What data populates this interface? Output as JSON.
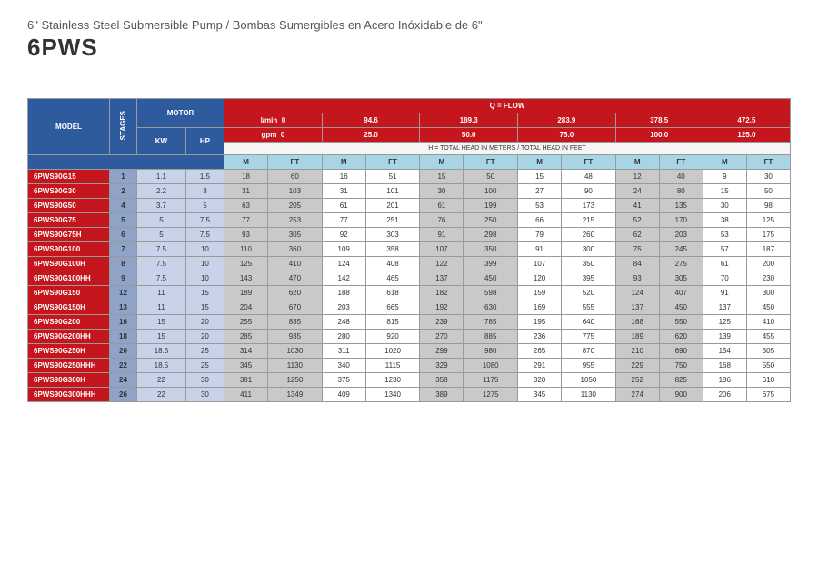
{
  "header": {
    "subtitle": "6\" Stainless Steel Submersible Pump / Bombas Sumergibles en Acero Inóxidable de 6\"",
    "title": "6PWS"
  },
  "labels": {
    "model": "MODEL",
    "stages": "STAGES",
    "motor": "MOTOR",
    "kw": "KW",
    "hp": "HP",
    "qflow": "Q = FLOW",
    "lmin": "l/min",
    "gpm": "gpm",
    "head_note": "H = TOTAL HEAD IN METERS / TOTAL HEAD IN FEET",
    "m": "M",
    "ft": "FT"
  },
  "flow_lmin": [
    "0",
    "94.6",
    "189.3",
    "283.9",
    "378.5",
    "472.5"
  ],
  "flow_gpm": [
    "0",
    "25.0",
    "50.0",
    "75.0",
    "100.0",
    "125.0"
  ],
  "rows": [
    {
      "model": "6PWS90G15",
      "stages": "1",
      "kw": "1.1",
      "hp": "1.5",
      "d": [
        "18",
        "60",
        "16",
        "51",
        "15",
        "50",
        "15",
        "48",
        "12",
        "40",
        "9",
        "30"
      ]
    },
    {
      "model": "6PWS90G30",
      "stages": "2",
      "kw": "2.2",
      "hp": "3",
      "d": [
        "31",
        "103",
        "31",
        "101",
        "30",
        "100",
        "27",
        "90",
        "24",
        "80",
        "15",
        "50"
      ]
    },
    {
      "model": "6PWS90G50",
      "stages": "4",
      "kw": "3.7",
      "hp": "5",
      "d": [
        "63",
        "205",
        "61",
        "201",
        "61",
        "199",
        "53",
        "173",
        "41",
        "135",
        "30",
        "98"
      ]
    },
    {
      "model": "6PWS90G75",
      "stages": "5",
      "kw": "5",
      "hp": "7.5",
      "d": [
        "77",
        "253",
        "77",
        "251",
        "76",
        "250",
        "66",
        "215",
        "52",
        "170",
        "38",
        "125"
      ]
    },
    {
      "model": "6PWS90G75H",
      "stages": "6",
      "kw": "5",
      "hp": "7.5",
      "d": [
        "93",
        "305",
        "92",
        "303",
        "91",
        "298",
        "79",
        "260",
        "62",
        "203",
        "53",
        "175"
      ]
    },
    {
      "model": "6PWS90G100",
      "stages": "7",
      "kw": "7.5",
      "hp": "10",
      "d": [
        "110",
        "360",
        "109",
        "358",
        "107",
        "350",
        "91",
        "300",
        "75",
        "245",
        "57",
        "187"
      ]
    },
    {
      "model": "6PWS90G100H",
      "stages": "8",
      "kw": "7.5",
      "hp": "10",
      "d": [
        "125",
        "410",
        "124",
        "408",
        "122",
        "399",
        "107",
        "350",
        "84",
        "275",
        "61",
        "200"
      ]
    },
    {
      "model": "6PWS90G100HH",
      "stages": "9",
      "kw": "7.5",
      "hp": "10",
      "d": [
        "143",
        "470",
        "142",
        "465",
        "137",
        "450",
        "120",
        "395",
        "93",
        "305",
        "70",
        "230"
      ]
    },
    {
      "model": "6PWS90G150",
      "stages": "12",
      "kw": "11",
      "hp": "15",
      "d": [
        "189",
        "620",
        "188",
        "618",
        "182",
        "598",
        "159",
        "520",
        "124",
        "407",
        "91",
        "300"
      ]
    },
    {
      "model": "6PWS90G150H",
      "stages": "13",
      "kw": "11",
      "hp": "15",
      "d": [
        "204",
        "670",
        "203",
        "665",
        "192",
        "630",
        "169",
        "555",
        "137",
        "450",
        "137",
        "450"
      ]
    },
    {
      "model": "6PWS90G200",
      "stages": "16",
      "kw": "15",
      "hp": "20",
      "d": [
        "255",
        "835",
        "248",
        "815",
        "239",
        "785",
        "195",
        "640",
        "168",
        "550",
        "125",
        "410"
      ]
    },
    {
      "model": "6PWS90G200HH",
      "stages": "18",
      "kw": "15",
      "hp": "20",
      "d": [
        "285",
        "935",
        "280",
        "920",
        "270",
        "885",
        "236",
        "775",
        "189",
        "620",
        "139",
        "455"
      ]
    },
    {
      "model": "6PWS90G250H",
      "stages": "20",
      "kw": "18.5",
      "hp": "25",
      "d": [
        "314",
        "1030",
        "311",
        "1020",
        "299",
        "980",
        "265",
        "870",
        "210",
        "690",
        "154",
        "505"
      ]
    },
    {
      "model": "6PWS90G250HHH",
      "stages": "22",
      "kw": "18.5",
      "hp": "25",
      "d": [
        "345",
        "1130",
        "340",
        "1115",
        "329",
        "1080",
        "291",
        "955",
        "229",
        "750",
        "168",
        "550"
      ]
    },
    {
      "model": "6PWS90G300H",
      "stages": "24",
      "kw": "22",
      "hp": "30",
      "d": [
        "381",
        "1250",
        "375",
        "1230",
        "358",
        "1175",
        "320",
        "1050",
        "252",
        "825",
        "186",
        "610"
      ]
    },
    {
      "model": "6PWS90G300HHH",
      "stages": "26",
      "kw": "22",
      "hp": "30",
      "d": [
        "411",
        "1349",
        "409",
        "1340",
        "389",
        "1275",
        "345",
        "1130",
        "274",
        "900",
        "206",
        "675"
      ]
    }
  ],
  "colors": {
    "blue": "#2e5a9e",
    "red": "#c4161c",
    "cyan": "#a8d5e5",
    "stage_bg": "#8fa3c9",
    "motor_bg": "#c8d2e8",
    "grey": "#c9c9c9"
  }
}
